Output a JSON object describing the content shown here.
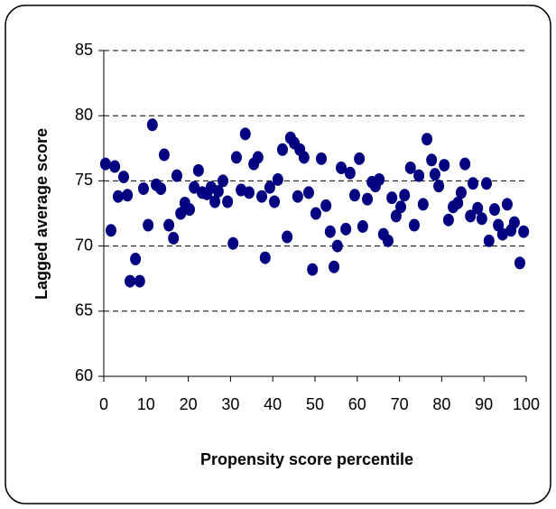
{
  "chart_data": {
    "type": "scatter",
    "x_label": "Propensity score percentile",
    "y_label": "Lagged average score",
    "color": "#000080",
    "grid": true,
    "xlim": [
      0,
      100
    ],
    "xticks": [
      0,
      10,
      20,
      30,
      40,
      50,
      60,
      70,
      80,
      90,
      100
    ],
    "ylim": [
      60,
      85
    ],
    "yticks": [
      60,
      65,
      70,
      75,
      80,
      85
    ],
    "x": [
      0.4,
      1.7,
      2.6,
      3.4,
      4.7,
      5.6,
      6.2,
      7.5,
      8.5,
      9.4,
      10.5,
      11.5,
      12.4,
      13.5,
      14.3,
      15.4,
      16.5,
      17.3,
      18.2,
      19.2,
      20.3,
      21.4,
      22.4,
      23.3,
      24.4,
      25.4,
      26.3,
      27.1,
      28.2,
      29.3,
      30.6,
      31.4,
      32.5,
      33.5,
      34.4,
      35.5,
      36.5,
      37.4,
      38.2,
      39.3,
      40.4,
      41.2,
      42.3,
      43.4,
      44.2,
      45.1,
      45.9,
      46.4,
      47.4,
      48.5,
      49.4,
      50.2,
      51.5,
      52.6,
      53.6,
      54.5,
      55.3,
      56.2,
      57.3,
      58.3,
      59.4,
      60.5,
      61.3,
      62.4,
      63.5,
      64.3,
      65.2,
      66.2,
      67.3,
      68.2,
      69.2,
      70.3,
      71.2,
      72.6,
      73.5,
      74.6,
      75.6,
      76.5,
      77.6,
      78.4,
      79.3,
      80.6,
      81.6,
      82.7,
      83.8,
      84.6,
      85.5,
      86.8,
      87.4,
      88.5,
      89.5,
      90.6,
      91.2,
      92.5,
      93.4,
      94.4,
      95.5,
      96.4,
      97.2,
      98.5,
      99.4
    ],
    "values": [
      76.3,
      71.2,
      76.1,
      73.8,
      75.3,
      73.9,
      67.3,
      69.0,
      67.3,
      74.4,
      71.6,
      79.3,
      74.7,
      74.4,
      77.0,
      71.6,
      70.6,
      75.4,
      72.5,
      73.3,
      72.8,
      74.5,
      75.8,
      74.1,
      74.0,
      74.5,
      73.4,
      74.2,
      75.0,
      73.4,
      70.2,
      76.8,
      74.3,
      78.6,
      74.1,
      76.3,
      76.8,
      73.8,
      69.1,
      74.5,
      73.4,
      75.1,
      77.4,
      70.7,
      78.3,
      77.9,
      73.8,
      77.4,
      76.8,
      74.1,
      68.2,
      72.5,
      76.7,
      73.1,
      71.1,
      68.4,
      70.0,
      76.0,
      71.3,
      75.6,
      73.9,
      76.7,
      71.5,
      73.6,
      74.9,
      74.6,
      75.1,
      70.9,
      70.4,
      73.7,
      72.3,
      73.0,
      73.9,
      76.0,
      71.6,
      75.4,
      73.2,
      78.2,
      76.6,
      75.5,
      74.6,
      76.2,
      72.0,
      73.0,
      73.3,
      74.1,
      76.3,
      72.3,
      74.8,
      72.9,
      72.1,
      74.8,
      70.4,
      72.8,
      71.6,
      70.9,
      73.2,
      71.2,
      71.8,
      68.7,
      71.1
    ]
  }
}
